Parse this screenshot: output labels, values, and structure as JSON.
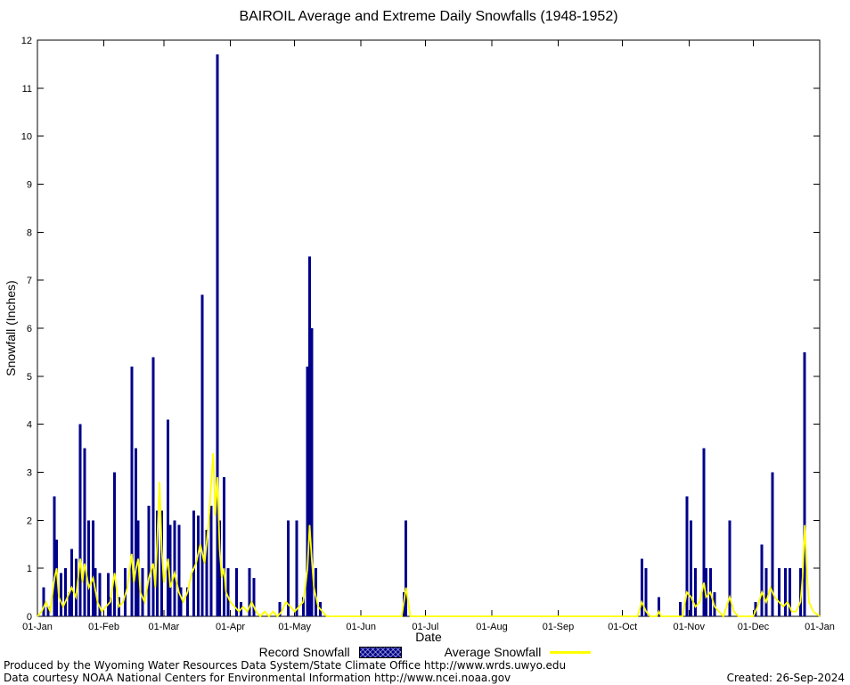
{
  "page": {
    "footer_line1": "Produced by the Wyoming Water Resources Data System/State Climate Office http://www.wrds.uwyo.edu",
    "footer_line2": "Data courtesy NOAA National Centers for Environmental Information http://www.ncei.noaa.gov",
    "created": "Created: 26-Sep-2024"
  },
  "legend": {
    "record_label": "Record Snowfall",
    "average_label": "Average Snowfall"
  },
  "chart_data": {
    "type": "bar",
    "title": "BAIROIL Average and Extreme Daily Snowfalls (1948-1952)",
    "xlabel": "Date",
    "ylabel": "Snowfall (Inches)",
    "ylim": [
      0,
      12
    ],
    "y_ticks": [
      0,
      1,
      2,
      3,
      4,
      5,
      6,
      7,
      8,
      9,
      10,
      11,
      12
    ],
    "x_tick_labels": [
      "01-Jan",
      "01-Feb",
      "01-Mar",
      "01-Apr",
      "01-May",
      "01-Jun",
      "01-Jul",
      "01-Aug",
      "01-Sep",
      "01-Oct",
      "01-Nov",
      "01-Dec",
      "01-Jan"
    ],
    "x_tick_days": [
      0,
      31,
      59,
      90,
      120,
      151,
      181,
      212,
      243,
      273,
      304,
      334,
      365
    ],
    "days_in_year": 365,
    "grid": "off",
    "legend_position": "bottom-center",
    "colors": {
      "record": "#00008B",
      "average": "#FFFF00"
    },
    "series": [
      {
        "name": "Record Snowfall",
        "type": "bar",
        "color": "#00008B",
        "points": [
          [
            3,
            0.6
          ],
          [
            5,
            0.2
          ],
          [
            8,
            2.5
          ],
          [
            9,
            1.6
          ],
          [
            11,
            0.9
          ],
          [
            13,
            1.0
          ],
          [
            15,
            0.5
          ],
          [
            16,
            1.4
          ],
          [
            18,
            1.2
          ],
          [
            20,
            4.0
          ],
          [
            22,
            3.5
          ],
          [
            24,
            2.0
          ],
          [
            26,
            2.0
          ],
          [
            27,
            1.0
          ],
          [
            29,
            0.9
          ],
          [
            33,
            0.9
          ],
          [
            34,
            0.4
          ],
          [
            36,
            3.0
          ],
          [
            38,
            0.4
          ],
          [
            41,
            1.0
          ],
          [
            44,
            5.2
          ],
          [
            46,
            3.5
          ],
          [
            47,
            2.0
          ],
          [
            49,
            1.0
          ],
          [
            52,
            2.3
          ],
          [
            54,
            5.4
          ],
          [
            56,
            2.2
          ],
          [
            58,
            2.2
          ],
          [
            61,
            4.1
          ],
          [
            62,
            1.9
          ],
          [
            64,
            2.0
          ],
          [
            66,
            1.9
          ],
          [
            67,
            0.6
          ],
          [
            70,
            0.6
          ],
          [
            73,
            2.2
          ],
          [
            75,
            2.1
          ],
          [
            77,
            6.7
          ],
          [
            79,
            1.8
          ],
          [
            81,
            2.3
          ],
          [
            84,
            11.7
          ],
          [
            85,
            2.0
          ],
          [
            87,
            2.9
          ],
          [
            89,
            1.0
          ],
          [
            93,
            1.0
          ],
          [
            95,
            0.3
          ],
          [
            99,
            1.0
          ],
          [
            101,
            0.8
          ],
          [
            113,
            0.3
          ],
          [
            117,
            2.0
          ],
          [
            121,
            2.0
          ],
          [
            124,
            0.4
          ],
          [
            126,
            5.2
          ],
          [
            127,
            7.5
          ],
          [
            128,
            6.0
          ],
          [
            130,
            1.0
          ],
          [
            132,
            0.3
          ],
          [
            171,
            0.5
          ],
          [
            172,
            2.0
          ],
          [
            282,
            1.2
          ],
          [
            284,
            1.0
          ],
          [
            290,
            0.4
          ],
          [
            300,
            0.3
          ],
          [
            303,
            2.5
          ],
          [
            305,
            2.0
          ],
          [
            307,
            1.0
          ],
          [
            311,
            3.5
          ],
          [
            312,
            1.0
          ],
          [
            314,
            1.0
          ],
          [
            316,
            0.5
          ],
          [
            323,
            2.0
          ],
          [
            335,
            0.3
          ],
          [
            338,
            1.5
          ],
          [
            340,
            1.0
          ],
          [
            343,
            3.0
          ],
          [
            346,
            1.0
          ],
          [
            349,
            1.0
          ],
          [
            351,
            1.0
          ],
          [
            356,
            1.0
          ],
          [
            358,
            5.5
          ]
        ]
      },
      {
        "name": "Average Snowfall",
        "type": "line",
        "color": "#FFFF00",
        "points": [
          [
            0,
            0
          ],
          [
            2,
            0.1
          ],
          [
            4,
            0.3
          ],
          [
            6,
            0.1
          ],
          [
            8,
            0.8
          ],
          [
            9,
            1.0
          ],
          [
            10,
            0.4
          ],
          [
            12,
            0.2
          ],
          [
            14,
            0.4
          ],
          [
            16,
            0.6
          ],
          [
            18,
            0.4
          ],
          [
            20,
            1.2
          ],
          [
            21,
            0.7
          ],
          [
            22,
            1.1
          ],
          [
            24,
            0.6
          ],
          [
            26,
            0.8
          ],
          [
            28,
            0.3
          ],
          [
            30,
            0.1
          ],
          [
            32,
            0.2
          ],
          [
            34,
            0.3
          ],
          [
            36,
            0.9
          ],
          [
            38,
            0.2
          ],
          [
            40,
            0.3
          ],
          [
            42,
            0.6
          ],
          [
            44,
            1.3
          ],
          [
            45,
            0.7
          ],
          [
            46,
            1.0
          ],
          [
            47,
            1.2
          ],
          [
            48,
            0.5
          ],
          [
            50,
            0.3
          ],
          [
            52,
            0.8
          ],
          [
            54,
            1.1
          ],
          [
            55,
            0.6
          ],
          [
            57,
            2.8
          ],
          [
            58,
            1.4
          ],
          [
            59,
            0.7
          ],
          [
            61,
            1.2
          ],
          [
            62,
            0.6
          ],
          [
            64,
            0.9
          ],
          [
            66,
            0.5
          ],
          [
            68,
            0.3
          ],
          [
            70,
            0.5
          ],
          [
            72,
            0.9
          ],
          [
            74,
            1.1
          ],
          [
            76,
            1.5
          ],
          [
            78,
            1.1
          ],
          [
            80,
            2.0
          ],
          [
            82,
            3.4
          ],
          [
            83,
            2.1
          ],
          [
            84,
            2.9
          ],
          [
            85,
            1.4
          ],
          [
            86,
            0.8
          ],
          [
            87,
            1.0
          ],
          [
            88,
            0.5
          ],
          [
            90,
            0.3
          ],
          [
            92,
            0.2
          ],
          [
            94,
            0.1
          ],
          [
            96,
            0.2
          ],
          [
            98,
            0.1
          ],
          [
            100,
            0.3
          ],
          [
            102,
            0.1
          ],
          [
            104,
            0
          ],
          [
            106,
            0.1
          ],
          [
            108,
            0
          ],
          [
            110,
            0.1
          ],
          [
            112,
            0
          ],
          [
            114,
            0.1
          ],
          [
            116,
            0.3
          ],
          [
            118,
            0.2
          ],
          [
            120,
            0.1
          ],
          [
            122,
            0.2
          ],
          [
            124,
            0.3
          ],
          [
            125,
            0.6
          ],
          [
            126,
            1.0
          ],
          [
            127,
            1.9
          ],
          [
            128,
            1.2
          ],
          [
            129,
            0.6
          ],
          [
            131,
            0.2
          ],
          [
            133,
            0.1
          ],
          [
            135,
            0
          ],
          [
            170,
            0
          ],
          [
            172,
            0.6
          ],
          [
            174,
            0
          ],
          [
            280,
            0
          ],
          [
            282,
            0.3
          ],
          [
            284,
            0.1
          ],
          [
            286,
            0
          ],
          [
            289,
            0
          ],
          [
            290,
            0.1
          ],
          [
            291,
            0
          ],
          [
            301,
            0
          ],
          [
            303,
            0.5
          ],
          [
            305,
            0.4
          ],
          [
            307,
            0.2
          ],
          [
            309,
            0.3
          ],
          [
            311,
            0.7
          ],
          [
            312,
            0.4
          ],
          [
            314,
            0.5
          ],
          [
            316,
            0.2
          ],
          [
            318,
            0.1
          ],
          [
            320,
            0
          ],
          [
            323,
            0.4
          ],
          [
            325,
            0.1
          ],
          [
            327,
            0
          ],
          [
            334,
            0
          ],
          [
            336,
            0.2
          ],
          [
            338,
            0.5
          ],
          [
            340,
            0.3
          ],
          [
            342,
            0.6
          ],
          [
            344,
            0.4
          ],
          [
            346,
            0.3
          ],
          [
            348,
            0.2
          ],
          [
            350,
            0.3
          ],
          [
            352,
            0.1
          ],
          [
            354,
            0.1
          ],
          [
            356,
            0.3
          ],
          [
            357,
            0.8
          ],
          [
            358,
            1.9
          ],
          [
            359,
            0.9
          ],
          [
            360,
            0.3
          ],
          [
            362,
            0.1
          ],
          [
            365,
            0
          ]
        ]
      }
    ]
  }
}
